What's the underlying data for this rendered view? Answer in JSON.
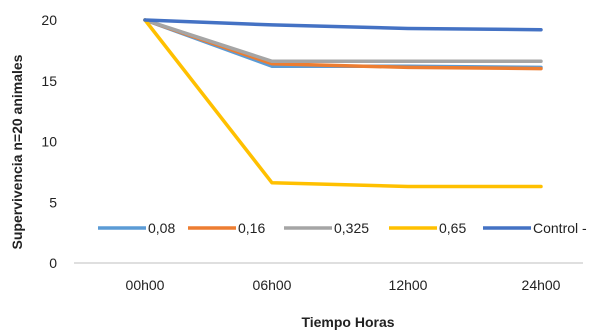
{
  "chart_data": {
    "type": "line",
    "categories": [
      "00h00",
      "06h00",
      "12h00",
      "24h00"
    ],
    "xlabel": "Tiempo Horas",
    "ylabel": "Supervivencia n=20 animales",
    "ylim": [
      0,
      20
    ],
    "yticks": [
      0,
      5,
      10,
      15,
      20
    ],
    "grid": false,
    "legend": "inside-bottom",
    "series": [
      {
        "name": "0,08",
        "color": "#5b9bd5",
        "values": [
          20,
          16.2,
          16.2,
          16.1
        ]
      },
      {
        "name": "0,16",
        "color": "#ed7d31",
        "values": [
          20,
          16.4,
          16.1,
          16.0
        ]
      },
      {
        "name": "0,325",
        "color": "#a5a5a5",
        "values": [
          20,
          16.6,
          16.6,
          16.6
        ]
      },
      {
        "name": "0,65",
        "color": "#ffc000",
        "values": [
          20,
          6.6,
          6.3,
          6.3
        ]
      },
      {
        "name": "Control -",
        "color": "#4472c4",
        "values": [
          20,
          19.6,
          19.3,
          19.2
        ]
      }
    ]
  }
}
